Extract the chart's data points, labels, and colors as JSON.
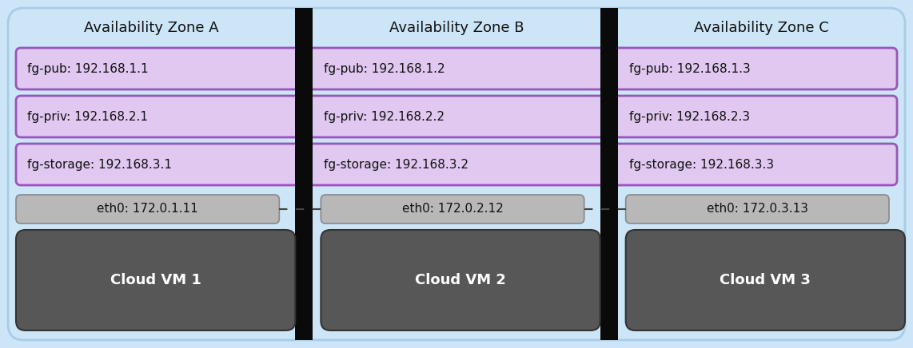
{
  "bg_color": "#cce5f7",
  "outer_border_color": "#a8cce8",
  "zone_bg_color": "#c8def4",
  "zones": [
    "Availability Zone A",
    "Availability Zone B",
    "Availability Zone C"
  ],
  "subnet_rows": [
    {
      "labels": [
        "fg-pub: 192.168.1.1",
        "fg-pub: 192.168.1.2",
        "fg-pub: 192.168.1.3"
      ],
      "bg_color": "#e0c8f0",
      "border_color": "#9955bb"
    },
    {
      "labels": [
        "fg-priv: 192.168.2.1",
        "fg-priv: 192.168.2.2",
        "fg-priv: 192.168.2.3"
      ],
      "bg_color": "#e0c8f0",
      "border_color": "#9955bb"
    },
    {
      "labels": [
        "fg-storage: 192.168.3.1",
        "fg-storage: 192.168.3.2",
        "fg-storage: 192.168.3.3"
      ],
      "bg_color": "#e0c8f0",
      "border_color": "#9955bb"
    }
  ],
  "eth_labels": [
    "eth0: 172.0.1.11",
    "eth0: 172.0.2.12",
    "eth0: 172.0.3.13"
  ],
  "eth_bg_color": "#b8b8b8",
  "vm_labels": [
    "Cloud VM 1",
    "Cloud VM 2",
    "Cloud VM 3"
  ],
  "vm_bg_color": "#575757",
  "vm_text_color": "#ffffff",
  "separator_color": "#0a0a0a",
  "dashed_line_color": "#444444",
  "title_fontsize": 13,
  "label_fontsize": 11,
  "vm_fontsize": 13,
  "fig_width": 11.42,
  "fig_height": 4.36,
  "dpi": 100
}
